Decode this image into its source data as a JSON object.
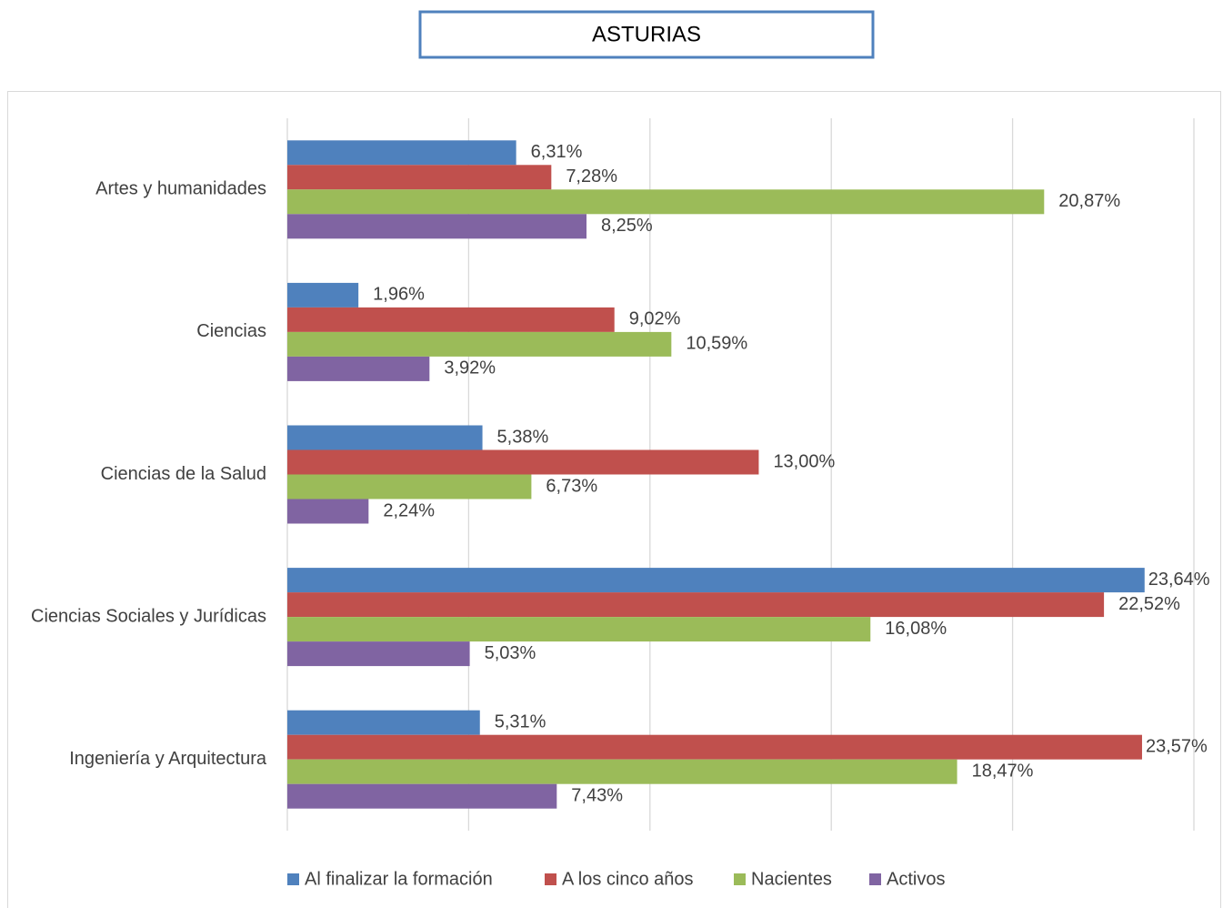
{
  "chart_data": {
    "type": "barh",
    "title": "ASTURIAS",
    "categories": [
      "Artes y humanidades",
      "Ciencias",
      "Ciencias de la Salud",
      "Ciencias Sociales y Jurídicas",
      "Ingeniería y Arquitectura"
    ],
    "series": [
      {
        "name": "Al finalizar la formación",
        "color": "#4f81bd",
        "values": [
          6.31,
          1.96,
          5.38,
          23.64,
          5.31
        ],
        "value_labels": [
          "6,31%",
          "1,96%",
          "5,38%",
          "23,64%",
          "5,31%"
        ]
      },
      {
        "name": "A los cinco años",
        "color": "#c0504d",
        "values": [
          7.28,
          9.02,
          13.0,
          22.52,
          23.57
        ],
        "value_labels": [
          "7,28%",
          "9,02%",
          "13,00%",
          "22,52%",
          "23,57%"
        ]
      },
      {
        "name": "Nacientes",
        "color": "#9bbb59",
        "values": [
          20.87,
          10.59,
          6.73,
          16.08,
          18.47
        ],
        "value_labels": [
          "20,87%",
          "10,59%",
          "6,73%",
          "16,08%",
          "18,47%"
        ]
      },
      {
        "name": "Activos",
        "color": "#8064a2",
        "values": [
          8.25,
          3.92,
          2.24,
          5.03,
          7.43
        ],
        "value_labels": [
          "8,25%",
          "3,92%",
          "2,24%",
          "5,03%",
          "7,43%"
        ]
      }
    ],
    "xlim": [
      0,
      25
    ],
    "xticks": [
      0,
      5,
      10,
      15,
      20,
      25
    ],
    "grid": true,
    "legend": "bottom"
  }
}
